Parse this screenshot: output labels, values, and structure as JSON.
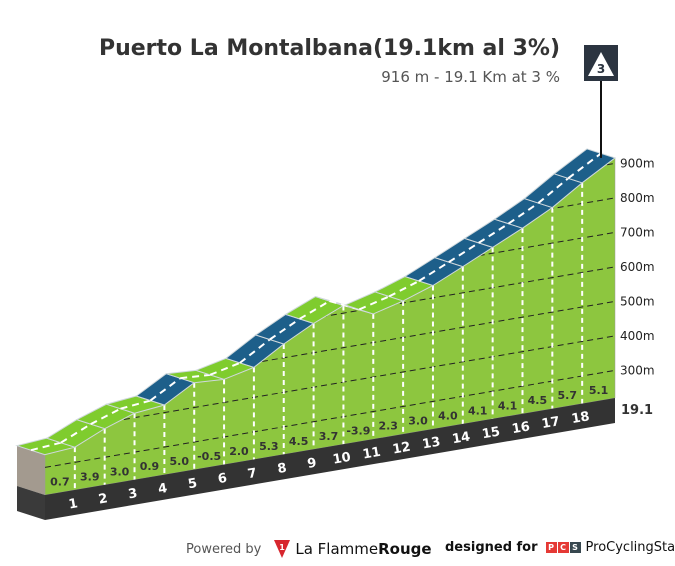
{
  "header": {
    "title": "Puerto La Montalbana(19.1km al 3%)",
    "subtitle": "916 m - 19.1 Km at 3 %",
    "category_badge": "3"
  },
  "chart_data": {
    "type": "area",
    "title": "Puerto La Montalbana(19.1km al 3%)",
    "summit_elevation_m": 916,
    "length_km": 19.1,
    "avg_gradient_pct": 3,
    "km_labels": [
      "1",
      "2",
      "3",
      "4",
      "5",
      "6",
      "7",
      "8",
      "9",
      "10",
      "11",
      "12",
      "13",
      "14",
      "15",
      "16",
      "17",
      "18"
    ],
    "end_label": "19.1",
    "segment_lengths_km": [
      1,
      1,
      1,
      1,
      1,
      1,
      1,
      1,
      1,
      1,
      1,
      1,
      1,
      1,
      1,
      1,
      1,
      1,
      1.1
    ],
    "gradients": [
      0.7,
      3.9,
      3.0,
      0.9,
      5.0,
      -0.5,
      2.0,
      5.3,
      4.5,
      3.7,
      -3.9,
      2.3,
      3.0,
      4.0,
      4.1,
      4.1,
      4.5,
      5.7,
      5.1
    ],
    "gradient_labels": [
      "0.7",
      "3.9",
      "3.0",
      "0.9",
      "5.0",
      "-0.5",
      "2.0",
      "5.3",
      "4.5",
      "3.7",
      "-3.9",
      "2.3",
      "3.0",
      "4.0",
      "4.1",
      "4.1",
      "4.5",
      "5.7",
      "5.1"
    ],
    "y_ticks": [
      300,
      400,
      500,
      600,
      700,
      800,
      900
    ],
    "y_tick_labels": [
      "300m",
      "400m",
      "500m",
      "600m",
      "700m",
      "800m",
      "900m"
    ],
    "colors": {
      "mild": "#7fcc2e",
      "steep": "#1d5f8a",
      "face": "#8dc63f",
      "base": "#333333",
      "side": "#a39a8f"
    }
  },
  "footer": {
    "powered_by": "Powered by",
    "brand_left": "La Flamme",
    "brand_right": "Rouge",
    "designed_for": "designed for",
    "pcs_letters": [
      "P",
      "C",
      "S"
    ],
    "pcs_name": "ProCyclingStats"
  }
}
